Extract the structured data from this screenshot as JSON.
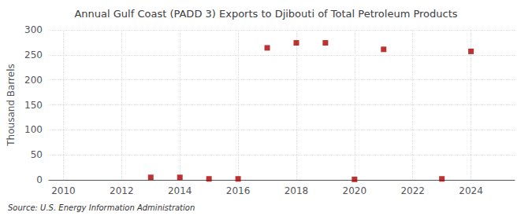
{
  "chart_data": {
    "type": "scatter",
    "title": "Annual Gulf Coast (PADD 3) Exports to Djibouti of Total Petroleum Products",
    "ylabel": "Thousand Barrels",
    "annotation": "Source: U.S. Energy Information Administration",
    "x": [
      2013,
      2014,
      2015,
      2016,
      2017,
      2018,
      2019,
      2020,
      2021,
      2023,
      2024
    ],
    "values": [
      5,
      5,
      2,
      2,
      264,
      274,
      274,
      1,
      261,
      2,
      257
    ],
    "color": "#aa0000",
    "marker": "square",
    "xlim": [
      2009.5,
      2025.5
    ],
    "xticks": [
      2010,
      2012,
      2014,
      2016,
      2018,
      2020,
      2022,
      2024
    ],
    "ylim": [
      0,
      300
    ],
    "yticks": [
      0,
      50,
      100,
      150,
      200,
      250,
      300
    ],
    "grid": true
  }
}
